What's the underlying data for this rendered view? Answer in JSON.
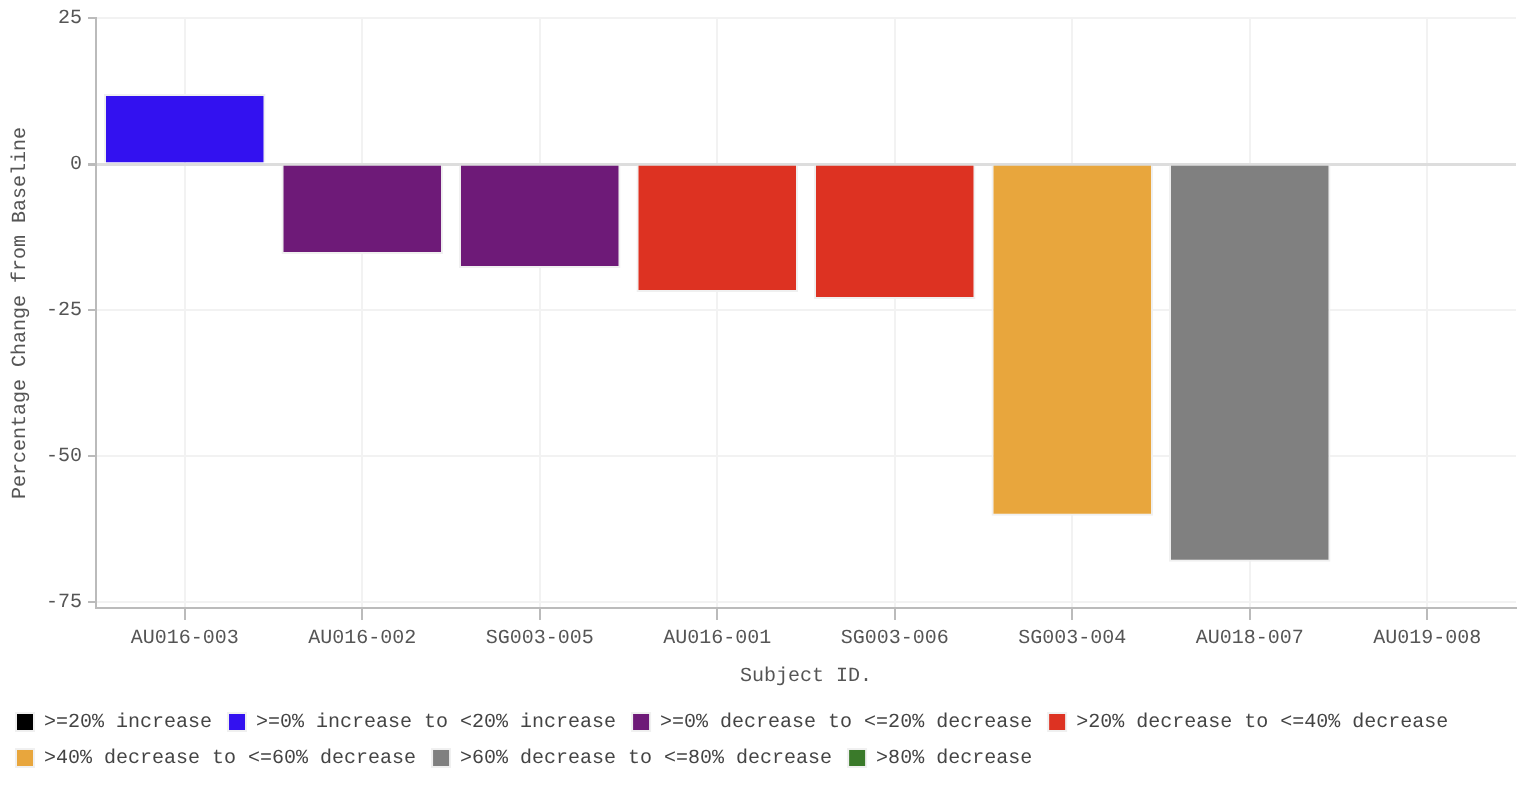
{
  "chart_data": {
    "type": "bar",
    "xlabel": "Subject ID.",
    "ylabel": "Percentage Change from Baseline",
    "categories": [
      "AU016-003",
      "AU016-002",
      "SG003-005",
      "AU016-001",
      "SG003-006",
      "SG003-004",
      "AU018-007",
      "AU019-008"
    ],
    "series": [
      {
        "name": ">=20% increase",
        "color": "#000000",
        "values": [
          null,
          null,
          null,
          null,
          null,
          null,
          null,
          null
        ]
      },
      {
        "name": ">=0% increase to <20% increase",
        "color": "#3311f0",
        "values": [
          12,
          null,
          null,
          null,
          null,
          null,
          null,
          null
        ]
      },
      {
        "name": ">=0% decrease to <=20% decrease",
        "color": "#6e1a78",
        "values": [
          null,
          -15.4,
          -17.8,
          null,
          null,
          null,
          null,
          null
        ]
      },
      {
        "name": ">20% decrease to <=40% decrease",
        "color": "#dd3222",
        "values": [
          null,
          null,
          null,
          -21.9,
          -23.1,
          null,
          null,
          null
        ]
      },
      {
        "name": ">40% decrease to <=60% decrease",
        "color": "#e8a63d",
        "values": [
          null,
          null,
          null,
          null,
          null,
          -60.2,
          null,
          null
        ]
      },
      {
        "name": ">60% decrease to <=80% decrease",
        "color": "#808080",
        "values": [
          null,
          null,
          null,
          null,
          null,
          null,
          -68.1,
          null
        ]
      },
      {
        "name": ">80% decrease",
        "color": "#3a7a2a",
        "values": [
          null,
          null,
          null,
          null,
          null,
          null,
          null,
          null
        ]
      }
    ],
    "stacked": true,
    "ylim": [
      -76,
      25
    ],
    "yticks": [
      -75,
      -50,
      -25,
      0,
      25
    ],
    "grid": true,
    "legend": "bottom"
  }
}
